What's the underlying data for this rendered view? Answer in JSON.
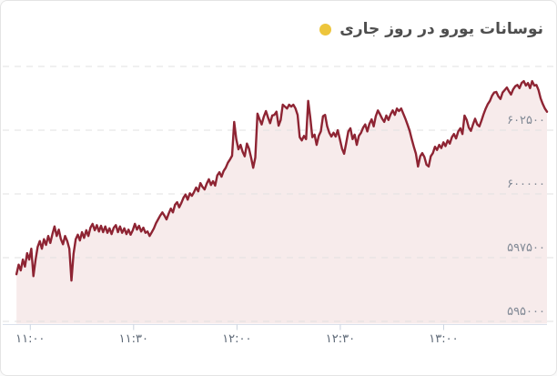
{
  "header": {
    "title": "نوسانات یورو در روز جاری"
  },
  "colors": {
    "legend_dot": "#edc53c",
    "title_text": "#4e4e4e",
    "line": "#8e2433",
    "fill": "#f7ebeb",
    "grid": "#e2e2e2",
    "axis_line": "#dbe1ec",
    "tick_mark": "#c9d2de",
    "y_label": "#828a96",
    "x_label": "#5d6876",
    "card_border": "#e4e4e4",
    "card_bg": "#ffffff"
  },
  "chart_data": {
    "type": "area",
    "title": "نوسانات یورو در روز جاری",
    "series_name": "یورو",
    "grid": "dashed horizontal",
    "legend_position": "top-right",
    "x_axis": {
      "range_start_time": "10:52",
      "range_end_time": "13:30",
      "tick_times": [
        "11:00",
        "11:30",
        "12:00",
        "12:30",
        "13:00"
      ],
      "tick_labels": [
        "۱۱:۰۰",
        "۱۱:۳۰",
        "۱۲:۰۰",
        "۱۲:۳۰",
        "۱۳:۰۰"
      ]
    },
    "y_axis": {
      "tick_values": [
        602500,
        600000,
        597500,
        595000
      ],
      "tick_labels": [
        "۶۰۲۵۰۰",
        "۶۰۰۰۰۰",
        "۵۹۷۵۰۰",
        "۵۹۵۰۰۰"
      ],
      "top_grid_value": 605000,
      "range": [
        594890,
        605070
      ]
    },
    "series": [
      {
        "name": "یورو",
        "time_start": "10:56",
        "time_end": "13:30",
        "values": [
          596850,
          597225,
          597000,
          597425,
          597150,
          597675,
          597425,
          597850,
          596775,
          597400,
          597925,
          598150,
          597850,
          598225,
          598000,
          598350,
          598075,
          598425,
          598725,
          598350,
          598600,
          598225,
          598025,
          598350,
          598150,
          597850,
          596600,
          597650,
          598225,
          598400,
          598175,
          598500,
          598275,
          598575,
          598350,
          598675,
          598825,
          598575,
          598775,
          598525,
          598750,
          598500,
          598725,
          598475,
          598650,
          598425,
          598675,
          598775,
          598500,
          598725,
          598475,
          598650,
          598425,
          598600,
          598400,
          598575,
          598825,
          598600,
          598750,
          598525,
          598675,
          598475,
          598525,
          598350,
          598500,
          598650,
          598850,
          599000,
          599150,
          599275,
          599150,
          599000,
          599225,
          599425,
          599275,
          599575,
          599675,
          599475,
          599650,
          599850,
          599975,
          599775,
          600025,
          599925,
          600075,
          600250,
          600100,
          600425,
          600275,
          600175,
          600400,
          600575,
          600350,
          600500,
          600325,
          600725,
          600850,
          600675,
          600900,
          601025,
          601225,
          601350,
          601500,
          602825,
          602150,
          601750,
          601925,
          601650,
          601475,
          601975,
          601775,
          601425,
          601025,
          601425,
          603150,
          602925,
          602725,
          603025,
          603250,
          603000,
          602775,
          603075,
          603100,
          603225,
          602675,
          602900,
          603500,
          603425,
          603350,
          603500,
          603425,
          603500,
          603350,
          603100,
          602225,
          602100,
          602275,
          602150,
          603650,
          603000,
          602225,
          602325,
          601925,
          602275,
          602450,
          603050,
          603100,
          602650,
          602400,
          602250,
          602400,
          602250,
          602500,
          602150,
          601775,
          601575,
          602000,
          602450,
          602575,
          602150,
          602325,
          601925,
          602275,
          602400,
          602600,
          602725,
          602450,
          602750,
          602925,
          602650,
          603050,
          603275,
          603125,
          602950,
          602825,
          603075,
          602900,
          603125,
          603275,
          603100,
          603350,
          603250,
          603350,
          603150,
          602950,
          602725,
          602475,
          602150,
          601850,
          601575,
          601075,
          601475,
          601600,
          601450,
          601150,
          601075,
          601475,
          601600,
          601850,
          601725,
          601925,
          601800,
          602025,
          601875,
          602100,
          601975,
          602225,
          602350,
          602175,
          602450,
          602575,
          602350,
          603075,
          602900,
          602600,
          602475,
          602725,
          602950,
          602725,
          602650,
          602875,
          603125,
          603350,
          603525,
          603650,
          603850,
          603975,
          604000,
          603825,
          603725,
          603975,
          604075,
          604175,
          604025,
          603900,
          604100,
          604225,
          604275,
          604150,
          604350,
          604425,
          604250,
          604350,
          604150,
          604425,
          604250,
          604275,
          604075,
          603750,
          603525,
          603350,
          603225
        ]
      }
    ]
  }
}
